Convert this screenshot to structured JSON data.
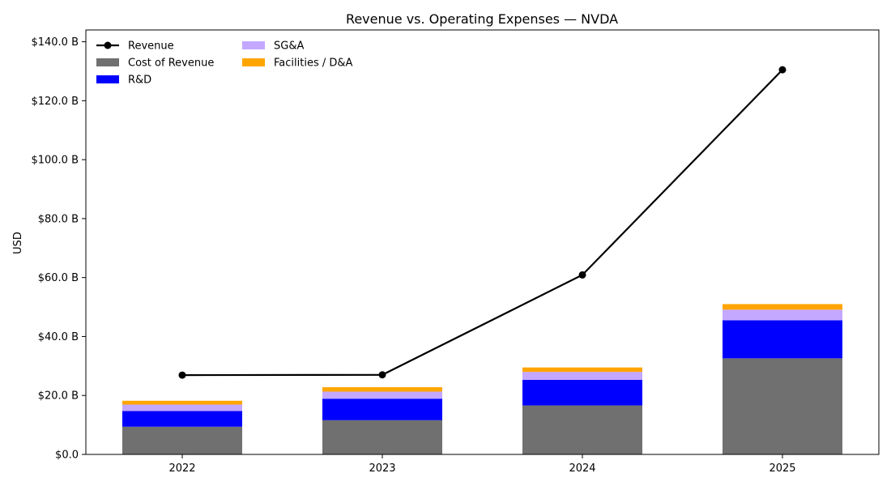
{
  "chart_data": {
    "type": "bar",
    "title": "Revenue vs. Operating Expenses — NVDA",
    "xlabel": "",
    "ylabel": "USD",
    "categories": [
      "2022",
      "2023",
      "2024",
      "2025"
    ],
    "yticks": [
      "$0.0",
      "$20.0 B",
      "$40.0 B",
      "$60.0 B",
      "$80.0 B",
      "$100.0 B",
      "$120.0 B",
      "$140.0 B"
    ],
    "ylim": [
      0,
      144
    ],
    "unit": "billions USD",
    "grid": false,
    "legend_position": "top-left",
    "stacked_series": [
      {
        "name": "Cost of Revenue",
        "color": "#707070",
        "values": [
          9.4,
          11.6,
          16.6,
          32.6
        ]
      },
      {
        "name": "R&D",
        "color": "#0000ff",
        "values": [
          5.3,
          7.3,
          8.7,
          12.9
        ]
      },
      {
        "name": "SG&A",
        "color": "#c4a7ff",
        "values": [
          2.2,
          2.4,
          2.7,
          3.6
        ]
      },
      {
        "name": "Facilities / D&A",
        "color": "#ffa500",
        "values": [
          1.3,
          1.5,
          1.5,
          1.9
        ]
      }
    ],
    "line_series": {
      "name": "Revenue",
      "color": "#000000",
      "values": [
        26.9,
        27.0,
        60.9,
        130.5
      ]
    }
  }
}
